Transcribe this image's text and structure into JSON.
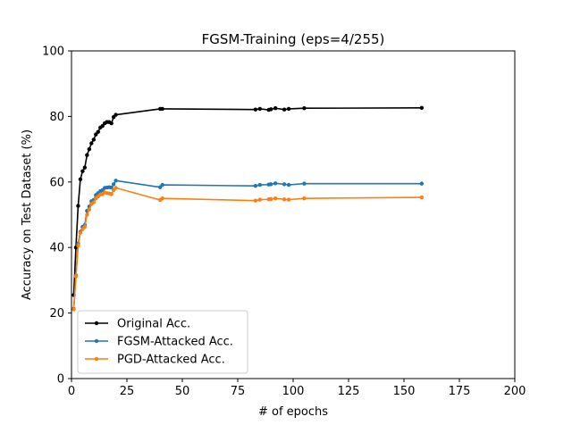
{
  "chart_data": {
    "type": "line",
    "title": "FGSM-Training (eps=4/255)",
    "xlabel": "# of epochs",
    "ylabel": "Accuracy on Test Dataset (%)",
    "xlim": [
      0,
      200
    ],
    "ylim": [
      0,
      100
    ],
    "xticks": [
      0,
      25,
      50,
      75,
      100,
      125,
      150,
      175,
      200
    ],
    "yticks": [
      0,
      20,
      40,
      60,
      80,
      100
    ],
    "grid": false,
    "legend_position": "lower-left",
    "series": [
      {
        "name": "Original Acc.",
        "color": "#000000",
        "x": [
          1,
          2,
          3,
          4,
          5,
          6,
          7,
          8,
          9,
          10,
          11,
          12,
          13,
          14,
          15,
          16,
          17,
          18,
          19,
          20,
          40,
          41,
          83,
          85,
          89,
          90,
          92,
          96,
          98,
          105,
          158
        ],
        "y": [
          25.5,
          40,
          52.7,
          60.8,
          63.3,
          64.4,
          68.2,
          70,
          71.8,
          72.9,
          74.5,
          75.3,
          76.6,
          77.1,
          77.9,
          78.3,
          78.3,
          77.9,
          79.8,
          80.5,
          82.3,
          82.3,
          82.1,
          82.3,
          82,
          82.2,
          82.5,
          82.1,
          82.3,
          82.5,
          82.6
        ]
      },
      {
        "name": "FGSM-Attacked Acc.",
        "color": "#1f77b4",
        "x": [
          1,
          2,
          3,
          4,
          5,
          6,
          7,
          8,
          9,
          10,
          11,
          12,
          13,
          14,
          15,
          16,
          17,
          18,
          19,
          20,
          40,
          41,
          83,
          85,
          89,
          90,
          92,
          96,
          98,
          105,
          158
        ],
        "y": [
          21.3,
          31.5,
          41.2,
          44.8,
          46.3,
          46.9,
          51.2,
          52.5,
          54.1,
          54.5,
          56,
          56.6,
          57.2,
          57.5,
          58.2,
          58.3,
          58.4,
          58.3,
          59.3,
          60.4,
          58.4,
          59.1,
          58.8,
          59.1,
          59.2,
          59.3,
          59.6,
          59.3,
          59.1,
          59.5,
          59.5
        ]
      },
      {
        "name": "PGD-Attacked Acc.",
        "color": "#ff7f0e",
        "x": [
          1,
          2,
          3,
          4,
          5,
          6,
          7,
          8,
          9,
          10,
          11,
          12,
          13,
          14,
          15,
          16,
          17,
          18,
          19,
          20,
          40,
          41,
          83,
          85,
          89,
          90,
          92,
          96,
          98,
          105,
          158
        ],
        "y": [
          21.1,
          31.2,
          40.6,
          44.5,
          45.6,
          46.3,
          50,
          51.6,
          53.3,
          53.8,
          55,
          55.6,
          56.2,
          56.3,
          56.8,
          56.6,
          56.5,
          56.3,
          57.5,
          58.2,
          54.5,
          55,
          54.3,
          54.6,
          54.7,
          54.8,
          55,
          54.7,
          54.6,
          55,
          55.3
        ]
      }
    ]
  }
}
